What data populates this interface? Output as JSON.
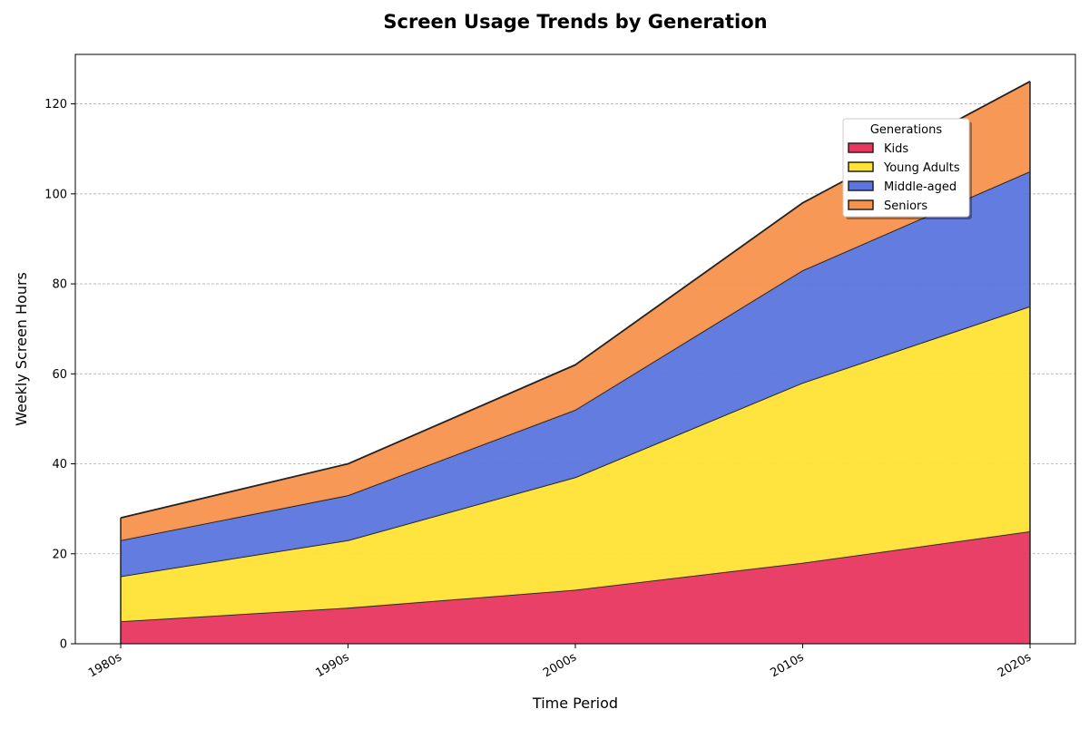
{
  "chart_data": {
    "type": "area",
    "stacked": true,
    "title": "Screen Usage Trends by Generation",
    "xlabel": "Time Period",
    "ylabel": "Weekly Screen Hours",
    "categories": [
      "1980s",
      "1990s",
      "2000s",
      "2010s",
      "2020s"
    ],
    "series": [
      {
        "name": "Kids",
        "values": [
          5,
          8,
          12,
          18,
          25
        ],
        "color": "#e8365f"
      },
      {
        "name": "Young Adults",
        "values": [
          10,
          15,
          25,
          40,
          50
        ],
        "color": "#ffe234"
      },
      {
        "name": "Middle-aged",
        "values": [
          8,
          10,
          15,
          25,
          30
        ],
        "color": "#5b75de"
      },
      {
        "name": "Seniors",
        "values": [
          5,
          7,
          10,
          15,
          20
        ],
        "color": "#f7924d"
      }
    ],
    "ylim": [
      0,
      131
    ],
    "yticks": [
      0,
      20,
      40,
      60,
      80,
      100,
      120
    ],
    "grid": "y-dashed",
    "legend": {
      "title": "Generations",
      "placement": "upper-right"
    }
  }
}
